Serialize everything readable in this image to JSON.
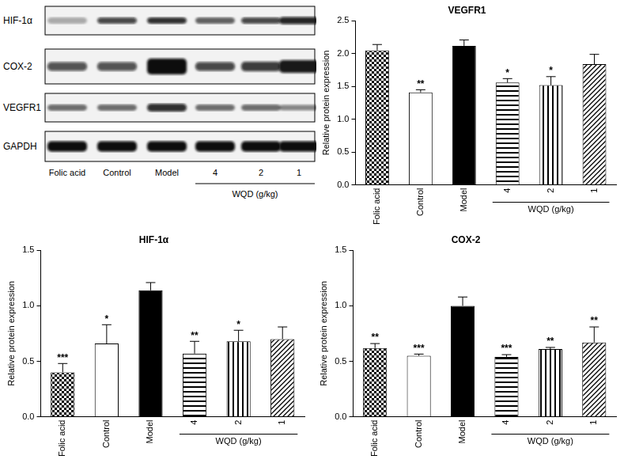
{
  "western_blot": {
    "rows": [
      "HIF-1α",
      "COX-2",
      "VEGFR1",
      "GAPDH"
    ],
    "lanes": [
      "Folic acid",
      "Control",
      "Model",
      "4",
      "2",
      "1"
    ],
    "lane_groups": [
      {
        "label": "WQD (g/kg)",
        "lanes": [
          "4",
          "2",
          "1"
        ]
      }
    ]
  },
  "chart_data": [
    {
      "type": "bar",
      "title": "VEGFR1",
      "y_label": "Relative protein expression",
      "categories": [
        "Folic acid",
        "Control",
        "Model",
        "4",
        "2",
        "1"
      ],
      "values": [
        2.05,
        1.41,
        2.12,
        1.56,
        1.52,
        1.84
      ],
      "errors": [
        0.09,
        0.04,
        0.09,
        0.06,
        0.13,
        0.15
      ],
      "significance": [
        null,
        "**",
        null,
        "*",
        "*",
        null
      ],
      "colors": [
        "#000000",
        "#ffffff",
        "#000000",
        "#000000",
        "#000000",
        "#000000"
      ],
      "x_groups": [
        {
          "label": "WQD (g/kg)",
          "categories": [
            "4",
            "2",
            "1"
          ]
        }
      ],
      "ylim": [
        0,
        2.5
      ],
      "yticks": [
        {
          "value": 0,
          "label": "0.0"
        },
        0.5,
        {
          "value": 1,
          "label": "1.0"
        },
        1.5,
        {
          "value": 2,
          "label": "2.0"
        },
        2.5
      ],
      "grid": false
    },
    {
      "type": "bar",
      "title": "HIF-1α",
      "y_label": "Relative protein expression",
      "categories": [
        "Folic acid",
        "Control",
        "Model",
        "4",
        "2",
        "1"
      ],
      "values": [
        0.4,
        0.66,
        1.14,
        0.57,
        0.68,
        0.7
      ],
      "errors": [
        0.08,
        0.17,
        0.07,
        0.11,
        0.1,
        0.11
      ],
      "significance": [
        "***",
        "*",
        null,
        "**",
        "*",
        null
      ],
      "colors": [
        "#000000",
        "#ffffff",
        "#000000",
        "#000000",
        "#000000",
        "#000000"
      ],
      "x_groups": [
        {
          "label": "WQD (g/kg)",
          "categories": [
            "4",
            "2",
            "1"
          ]
        }
      ],
      "ylim": [
        0,
        1.5
      ],
      "yticks": [
        {
          "value": 0,
          "label": "0.0"
        },
        0.5,
        {
          "value": 1,
          "label": "1.0"
        },
        1.5
      ],
      "grid": false
    },
    {
      "type": "bar",
      "title": "COX-2",
      "y_label": "Relative protein expression",
      "categories": [
        "Folic acid",
        "Control",
        "Model",
        "4",
        "2",
        "1"
      ],
      "values": [
        0.62,
        0.55,
        1.0,
        0.54,
        0.61,
        0.67
      ],
      "errors": [
        0.04,
        0.015,
        0.08,
        0.02,
        0.015,
        0.14
      ],
      "significance": [
        "**",
        "***",
        null,
        "***",
        "**",
        "**"
      ],
      "colors": [
        "#000000",
        "#ffffff",
        "#000000",
        "#000000",
        "#000000",
        "#000000"
      ],
      "x_groups": [
        {
          "label": "WQD (g/kg)",
          "categories": [
            "4",
            "2",
            "1"
          ]
        }
      ],
      "ylim": [
        0,
        1.5
      ],
      "yticks": [
        {
          "value": 0,
          "label": "0.0"
        },
        0.5,
        {
          "value": 1,
          "label": "1.0"
        },
        1.5
      ],
      "grid": false
    }
  ]
}
